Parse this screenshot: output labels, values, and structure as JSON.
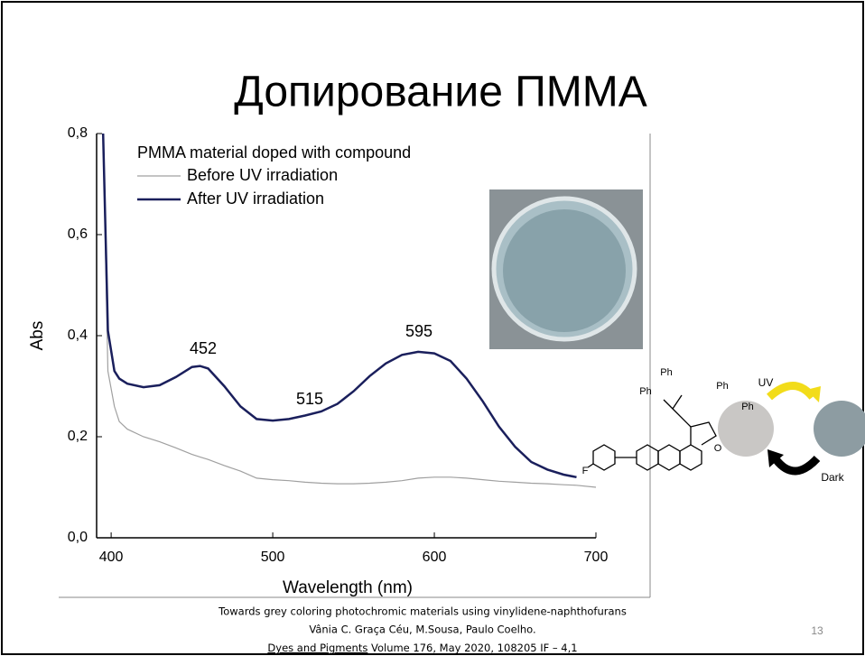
{
  "slide": {
    "title": "Допирование ПММА",
    "citation": [
      "Towards grey coloring photochromic materials using vinylidene-naphthofurans",
      "Vânia C. Graça Céu, M.Sousa, Paulo Coelho."
    ],
    "journal": "Dyes and Pigments",
    "journal_details": " Volume 176, May 2020, 108205 IF – 4,1",
    "page_number": "13",
    "structure_labels": [
      "Ph",
      "Ph",
      "Ph",
      "Ph",
      "O",
      "F"
    ],
    "scheme_labels": [
      "UV",
      "Dark"
    ]
  },
  "chart_data": {
    "type": "line",
    "legend_title": "PMMA material doped with compound",
    "x_label": "Wavelength (nm)",
    "y_label": "Abs",
    "x": [
      395,
      398,
      402,
      405,
      410,
      420,
      430,
      440,
      450,
      455,
      460,
      470,
      480,
      490,
      500,
      510,
      520,
      530,
      540,
      550,
      560,
      570,
      580,
      590,
      600,
      610,
      620,
      630,
      640,
      650,
      660,
      670,
      680,
      688,
      700
    ],
    "series": [
      {
        "name": "Before UV irradiation",
        "color": "#a0a0a0",
        "values": [
          0.8,
          0.33,
          0.26,
          0.23,
          0.215,
          0.2,
          0.19,
          0.178,
          0.165,
          0.16,
          0.155,
          0.143,
          0.132,
          0.118,
          0.115,
          0.113,
          0.11,
          0.108,
          0.107,
          0.107,
          0.108,
          0.11,
          0.113,
          0.118,
          0.12,
          0.12,
          0.118,
          0.115,
          0.112,
          0.11,
          0.108,
          0.107,
          0.105,
          0.104,
          0.1
        ]
      },
      {
        "name": "After UV irradiation",
        "color": "#1a1f5c",
        "values": [
          0.8,
          0.41,
          0.33,
          0.315,
          0.305,
          0.298,
          0.302,
          0.318,
          0.338,
          0.34,
          0.335,
          0.3,
          0.26,
          0.235,
          0.232,
          0.235,
          0.242,
          0.25,
          0.265,
          0.29,
          0.32,
          0.345,
          0.362,
          0.368,
          0.365,
          0.35,
          0.315,
          0.27,
          0.22,
          0.18,
          0.15,
          0.135,
          0.125,
          0.12,
          null
        ]
      }
    ],
    "annotations": [
      "452",
      "515",
      "595"
    ],
    "xlim": [
      391,
      700
    ],
    "ylim": [
      0,
      0.8
    ],
    "xticks": [
      400,
      500,
      600,
      700
    ],
    "yticks": [
      {
        "value": 0,
        "label": "0,0"
      },
      {
        "value": 0.2,
        "label": "0,2"
      },
      {
        "value": 0.4,
        "label": "0,4"
      },
      {
        "value": 0.6,
        "label": "0,6"
      },
      {
        "value": 0.8,
        "label": "0,8"
      }
    ]
  }
}
